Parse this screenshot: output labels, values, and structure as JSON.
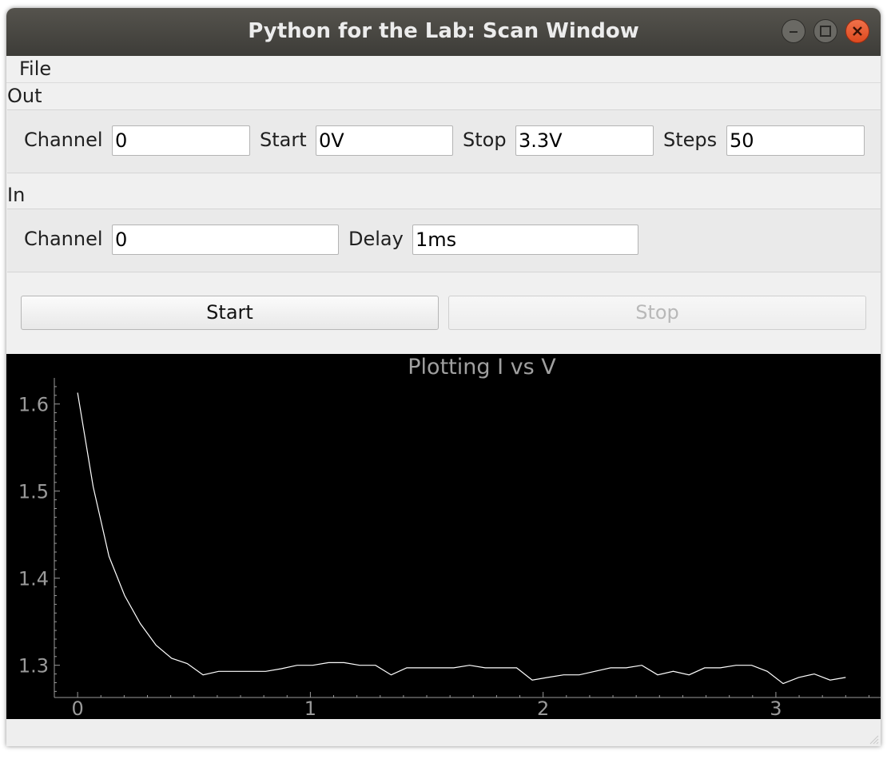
{
  "window": {
    "title": "Python for the Lab: Scan Window",
    "buttons": [
      "minimize-icon",
      "maximize-icon",
      "close-icon"
    ],
    "close_color": "#e95420"
  },
  "menu": {
    "items": [
      "File"
    ]
  },
  "out_group": {
    "title": "Out",
    "channel_label": "Channel",
    "channel_value": "0",
    "start_label": "Start",
    "start_value": "0V",
    "stop_label": "Stop",
    "stop_value": "3.3V",
    "steps_label": "Steps",
    "steps_value": "50"
  },
  "in_group": {
    "title": "In",
    "channel_label": "Channel",
    "channel_value": "0",
    "delay_label": "Delay",
    "delay_value": "1ms"
  },
  "actions": {
    "start_label": "Start",
    "stop_label": "Stop",
    "stop_enabled": false
  },
  "chart_data": {
    "type": "line",
    "title": "Plotting I vs V",
    "xlabel": "",
    "ylabel": "",
    "xlim": [
      -0.1,
      3.45
    ],
    "ylim": [
      1.263,
      1.63
    ],
    "x_ticks": [
      0,
      1,
      2,
      3
    ],
    "y_ticks": [
      1.3,
      1.4,
      1.5,
      1.6
    ],
    "x_tick_labels": [
      "0",
      "1",
      "2",
      "3"
    ],
    "y_tick_labels": [
      "1.3",
      "1.4",
      "1.5",
      "1.6"
    ],
    "grid": false,
    "background": "#000000",
    "line_color": "#ffffff",
    "x": [
      0,
      0.067,
      0.135,
      0.202,
      0.269,
      0.337,
      0.404,
      0.471,
      0.539,
      0.606,
      0.673,
      0.741,
      0.808,
      0.875,
      0.943,
      1.01,
      1.078,
      1.145,
      1.212,
      1.28,
      1.347,
      1.414,
      1.482,
      1.549,
      1.616,
      1.684,
      1.751,
      1.818,
      1.886,
      1.953,
      2.02,
      2.088,
      2.155,
      2.222,
      2.29,
      2.357,
      2.424,
      2.492,
      2.559,
      2.627,
      2.694,
      2.761,
      2.829,
      2.896,
      2.963,
      3.031,
      3.098,
      3.165,
      3.233,
      3.3
    ],
    "y": [
      1.613,
      1.505,
      1.425,
      1.38,
      1.348,
      1.323,
      1.308,
      1.302,
      1.289,
      1.293,
      1.293,
      1.293,
      1.293,
      1.296,
      1.3,
      1.3,
      1.303,
      1.303,
      1.3,
      1.3,
      1.289,
      1.297,
      1.297,
      1.297,
      1.297,
      1.3,
      1.297,
      1.297,
      1.297,
      1.283,
      1.286,
      1.289,
      1.289,
      1.293,
      1.297,
      1.297,
      1.3,
      1.289,
      1.293,
      1.289,
      1.297,
      1.297,
      1.3,
      1.3,
      1.293,
      1.279,
      1.286,
      1.29,
      1.283,
      1.286
    ]
  }
}
